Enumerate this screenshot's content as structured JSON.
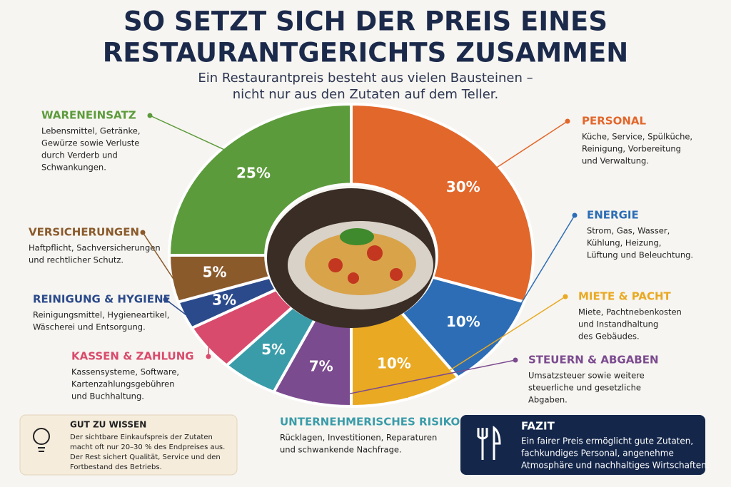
{
  "header": {
    "title": [
      "SO SETZT SICH DER PREIS EINES",
      "RESTAURANTGERICHTS ZUSAMMEN"
    ],
    "subtitle": [
      "Ein Restaurantpreis besteht aus vielen Bausteinen –",
      "nicht nur aus den Zutaten auf dem Teller."
    ]
  },
  "chart_data": {
    "type": "pie",
    "categories": [
      "PERSONAL",
      "ENERGIE",
      "MIETE & PACHT",
      "STEUERN & ABGABEN",
      "UNTERNEHMERISCHES RISIKO",
      "KASSEN & ZAHLUNG",
      "REINIGUNG & HYGIENE",
      "VERSICHERUNGEN",
      "WARENEINSATZ"
    ],
    "values": [
      30,
      10,
      10,
      7,
      5,
      5,
      3,
      5,
      25
    ],
    "value_labels": [
      "30%",
      "10%",
      "10%",
      "7%",
      "5%",
      null,
      "3%",
      "5%",
      "25%"
    ],
    "colors": [
      "#e2672b",
      "#2c6db5",
      "#e9a922",
      "#7b4b8f",
      "#3a9ca9",
      "#d94b6c",
      "#2b4a8b",
      "#8a5a2b",
      "#5c9b3b"
    ],
    "descriptions": [
      [
        "Küche, Service, Spülküche,",
        "Reinigung, Vorbereitung",
        "und Verwaltung."
      ],
      [
        "Strom, Gas, Wasser,",
        "Kühlung, Heizung,",
        "Lüftung und Beleuchtung."
      ],
      [
        "Miete, Pachtnebenkosten",
        "und Instandhaltung",
        "des Gebäudes."
      ],
      [
        "Umsatzsteuer sowie weitere",
        "steuerliche und gesetzliche",
        "Abgaben."
      ],
      [
        "Rücklagen, Investitionen, Reparaturen",
        "und schwankende Nachfrage."
      ],
      [
        "Kassensysteme, Software,",
        "Kartenzahlungsgebühren",
        "und Buchhaltung."
      ],
      [
        "Reinigungsmittel, Hygieneartikel,",
        "Wäscherei und Entsorgung."
      ],
      [
        "Haftpflicht, Sachversicherungen",
        "und rechtlicher Schutz."
      ],
      [
        "Lebensmittel, Getränke,",
        "Gewürze sowie Verluste",
        "durch Verderb und",
        "Schwankungen."
      ]
    ]
  },
  "info": {
    "title": "GUT ZU WISSEN",
    "lines": [
      "Der sichtbare Einkaufspreis der Zutaten",
      "macht oft nur 20–30 % des Endpreises aus.",
      "Der Rest sichert Qualität, Service und den",
      "Fortbestand des Betriebs."
    ]
  },
  "conclusion": {
    "title": "FAZIT",
    "lines": [
      "Ein fairer Preis ermöglicht gute Zutaten,",
      "fachkundiges Personal, angenehme",
      "Atmosphäre und nachhaltiges Wirtschaften."
    ]
  }
}
